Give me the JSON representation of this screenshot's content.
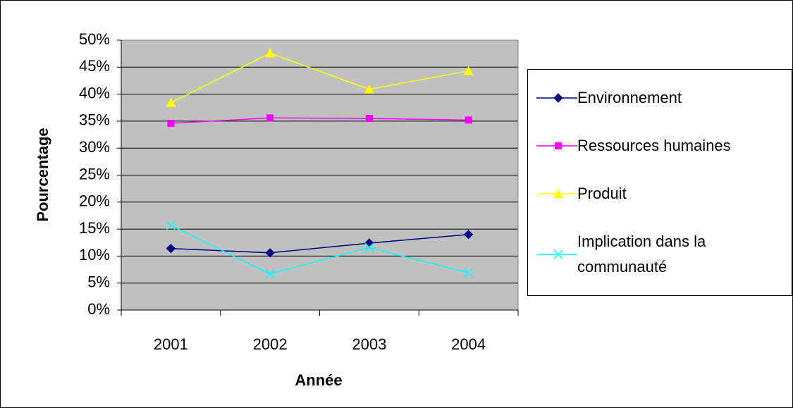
{
  "chart_data": {
    "type": "line",
    "y_label": "Pourcentage",
    "x_label": "Année",
    "categories": [
      "2001",
      "2002",
      "2003",
      "2004"
    ],
    "series": [
      {
        "name": "Environnement",
        "color": "#000080",
        "marker": "diamond",
        "values": [
          11.4,
          10.6,
          12.4,
          14.0
        ]
      },
      {
        "name": "Ressources humaines",
        "color": "#ff00ff",
        "marker": "square",
        "values": [
          34.6,
          35.6,
          35.5,
          35.2
        ]
      },
      {
        "name": "Produit",
        "color": "#ffff00",
        "marker": "triangle",
        "values": [
          38.4,
          47.6,
          40.9,
          44.3
        ]
      },
      {
        "name": "Implication dans la communauté",
        "color": "#00ffff",
        "marker": "x",
        "values": [
          15.7,
          6.7,
          11.6,
          6.9
        ]
      }
    ],
    "ylim": [
      0,
      50
    ],
    "yticks": [
      {
        "value": 0,
        "label": "0%"
      },
      {
        "value": 5,
        "label": "5%"
      },
      {
        "value": 10,
        "label": "10%"
      },
      {
        "value": 15,
        "label": "15%"
      },
      {
        "value": 20,
        "label": "20%"
      },
      {
        "value": 25,
        "label": "25%"
      },
      {
        "value": 30,
        "label": "30%"
      },
      {
        "value": 35,
        "label": "35%"
      },
      {
        "value": 40,
        "label": "40%"
      },
      {
        "value": 45,
        "label": "45%"
      },
      {
        "value": 50,
        "label": "50%"
      }
    ],
    "grid": true,
    "plot_background": "#c0c0c0"
  }
}
